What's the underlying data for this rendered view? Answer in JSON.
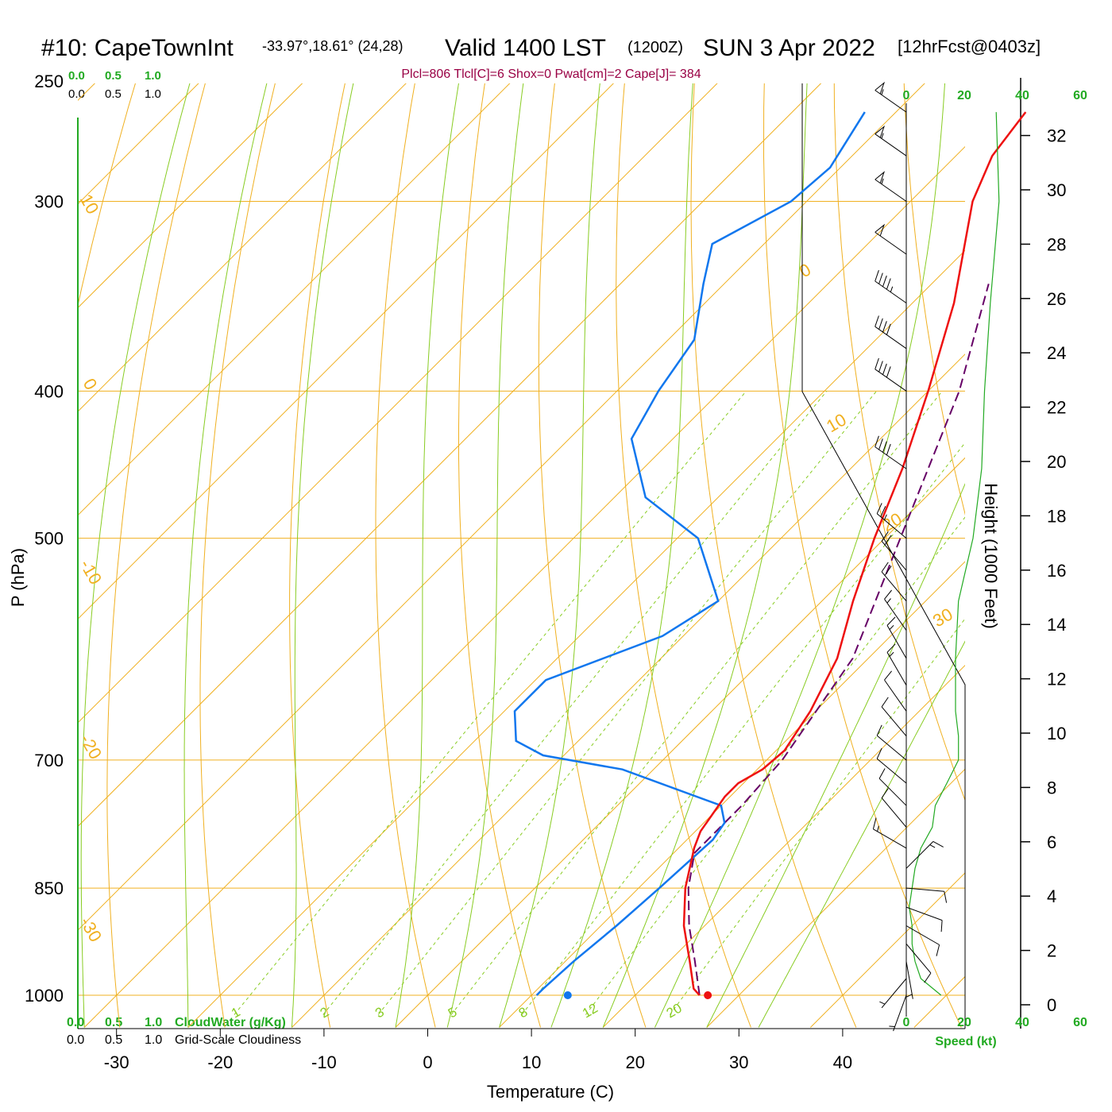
{
  "header": {
    "station": "#10: CapeTownInt",
    "coords": "-33.97°,18.61° (24,28)",
    "valid": "Valid 1400 LST",
    "utc": "(1200Z)",
    "date": "SUN 3 Apr 2022",
    "forecast": "[12hrFcst@0403z]",
    "indices": "Plcl=806 Tlcl[C]=6 Shox=0 Pwat[cm]=2 Cape[J]= 384"
  },
  "colors": {
    "temperature": "#ee1111",
    "dewpoint": "#1177ee",
    "parcel": "#660066",
    "isobar": "#f0b020",
    "isotherm": "#f0b020",
    "dry_adiabat": "#f0b020",
    "moist_adiabat": "#88cc22",
    "mixing_ratio": "#88cc22",
    "green_text": "#22aa22"
  },
  "cloud_scale": {
    "water_ticks": [
      "0.0",
      "0.5",
      "1.0"
    ],
    "water_label": "CloudWater (g/Kg)",
    "cover_ticks": [
      "0.0",
      "0.5",
      "1.0"
    ],
    "cover_label": "Grid-Scale Cloudiness"
  },
  "chart_data": {
    "type": "line",
    "xlabel": "Temperature (C)",
    "ylabel": "P (hPa)",
    "y2label": "Height (1000 Feet)",
    "speed_label": "Speed (kt)",
    "xlim": [
      -30,
      40
    ],
    "ylim": [
      1000,
      250
    ],
    "x_ticks": [
      "-30",
      "-20",
      "-10",
      "0",
      "10",
      "20",
      "30",
      "40"
    ],
    "pressure_ticks": [
      {
        "p": 250,
        "label": "250"
      },
      {
        "p": 300,
        "label": "300"
      },
      {
        "p": 400,
        "label": "400"
      },
      {
        "p": 500,
        "label": "500"
      },
      {
        "p": 700,
        "label": "700"
      },
      {
        "p": 850,
        "label": "850"
      },
      {
        "p": 1000,
        "label": "1000"
      }
    ],
    "height_ticks": [
      "0",
      "2",
      "4",
      "6",
      "8",
      "10",
      "12",
      "14",
      "16",
      "18",
      "20",
      "22",
      "24",
      "26",
      "28",
      "30",
      "32"
    ],
    "speed_ticks": [
      "0",
      "20",
      "40",
      "60"
    ],
    "temperature_profile": [
      [
        1000,
        26.2
      ],
      [
        990,
        25.0
      ],
      [
        950,
        22.0
      ],
      [
        900,
        18.0
      ],
      [
        850,
        14.5
      ],
      [
        800,
        11.5
      ],
      [
        780,
        10.5
      ],
      [
        740,
        9.5
      ],
      [
        725,
        9.5
      ],
      [
        710,
        10.5
      ],
      [
        690,
        10.8
      ],
      [
        650,
        9.5
      ],
      [
        600,
        7.0
      ],
      [
        550,
        3.0
      ],
      [
        500,
        -1.0
      ],
      [
        450,
        -5.0
      ],
      [
        400,
        -10.0
      ],
      [
        350,
        -16.0
      ],
      [
        300,
        -24.0
      ],
      [
        280,
        -26.5
      ],
      [
        262,
        -27.5
      ]
    ],
    "dewpoint_profile": [
      [
        1000,
        10.5
      ],
      [
        990,
        10.5
      ],
      [
        950,
        10.8
      ],
      [
        900,
        11.5
      ],
      [
        850,
        12.0
      ],
      [
        790,
        12.5
      ],
      [
        770,
        12.0
      ],
      [
        750,
        10.0
      ],
      [
        710,
        -3.0
      ],
      [
        695,
        -12.0
      ],
      [
        680,
        -16.0
      ],
      [
        650,
        -19.0
      ],
      [
        620,
        -19.0
      ],
      [
        580,
        -12.0
      ],
      [
        550,
        -10.0
      ],
      [
        500,
        -18.0
      ],
      [
        470,
        -27.0
      ],
      [
        430,
        -34.0
      ],
      [
        400,
        -36.0
      ],
      [
        370,
        -37.5
      ],
      [
        340,
        -42.0
      ],
      [
        320,
        -45.0
      ],
      [
        300,
        -41.5
      ],
      [
        285,
        -41.0
      ],
      [
        262,
        -43.0
      ]
    ],
    "parcel_profile": [
      [
        1000,
        26.2
      ],
      [
        950,
        22.5
      ],
      [
        900,
        18.5
      ],
      [
        850,
        14.8
      ],
      [
        806,
        12.0
      ],
      [
        750,
        12.0
      ],
      [
        700,
        11.5
      ],
      [
        600,
        8.5
      ],
      [
        500,
        1.5
      ],
      [
        400,
        -7.0
      ],
      [
        340,
        -14.5
      ]
    ],
    "surface_temperature": 27.0,
    "surface_dewpoint": 13.5,
    "isotherm_labels": [
      "10",
      "0",
      "-10",
      "-20",
      "-30",
      "0",
      "10",
      "20",
      "30"
    ],
    "mixing_ratio_labels": [
      "1",
      "2",
      "3",
      "5",
      "8",
      "12",
      "20"
    ],
    "mixing_ratios": [
      1,
      2,
      3,
      5,
      8,
      12,
      20
    ],
    "wind_speed_profile": [
      [
        1000,
        12
      ],
      [
        975,
        5
      ],
      [
        950,
        3
      ],
      [
        925,
        2
      ],
      [
        900,
        2
      ],
      [
        875,
        1
      ],
      [
        850,
        2
      ],
      [
        825,
        3
      ],
      [
        800,
        5
      ],
      [
        775,
        9
      ],
      [
        750,
        10
      ],
      [
        725,
        14
      ],
      [
        700,
        18
      ],
      [
        675,
        18
      ],
      [
        650,
        17
      ],
      [
        600,
        17
      ],
      [
        550,
        18
      ],
      [
        500,
        23
      ],
      [
        450,
        26
      ],
      [
        400,
        27
      ],
      [
        350,
        29
      ],
      [
        300,
        32
      ],
      [
        262,
        31
      ]
    ],
    "wind_barbs": [
      {
        "p": 1000,
        "spd": 5,
        "dir": 200
      },
      {
        "p": 975,
        "spd": 5,
        "dir": 220
      },
      {
        "p": 950,
        "spd": 5,
        "dir": 170
      },
      {
        "p": 925,
        "spd": 10,
        "dir": 140
      },
      {
        "p": 900,
        "spd": 10,
        "dir": 120
      },
      {
        "p": 875,
        "spd": 10,
        "dir": 110
      },
      {
        "p": 850,
        "spd": 10,
        "dir": 95
      },
      {
        "p": 825,
        "spd": 15,
        "dir": 45
      },
      {
        "p": 800,
        "spd": 15,
        "dir": 300
      },
      {
        "p": 775,
        "spd": 10,
        "dir": 320
      },
      {
        "p": 750,
        "spd": 10,
        "dir": 315
      },
      {
        "p": 725,
        "spd": 10,
        "dir": 310
      },
      {
        "p": 700,
        "spd": 10,
        "dir": 310
      },
      {
        "p": 675,
        "spd": 10,
        "dir": 320
      },
      {
        "p": 650,
        "spd": 10,
        "dir": 325
      },
      {
        "p": 625,
        "spd": 15,
        "dir": 330
      },
      {
        "p": 600,
        "spd": 15,
        "dir": 330
      },
      {
        "p": 575,
        "spd": 15,
        "dir": 325
      },
      {
        "p": 550,
        "spd": 20,
        "dir": 320
      },
      {
        "p": 525,
        "spd": 20,
        "dir": 320
      },
      {
        "p": 500,
        "spd": 25,
        "dir": 310
      },
      {
        "p": 450,
        "spd": 40,
        "dir": 305
      },
      {
        "p": 400,
        "spd": 40,
        "dir": 305
      },
      {
        "p": 375,
        "spd": 40,
        "dir": 305
      },
      {
        "p": 350,
        "spd": 45,
        "dir": 305
      },
      {
        "p": 325,
        "spd": 50,
        "dir": 305
      },
      {
        "p": 300,
        "spd": 55,
        "dir": 305
      },
      {
        "p": 280,
        "spd": 55,
        "dir": 305
      },
      {
        "p": 262,
        "spd": 55,
        "dir": 305
      }
    ]
  }
}
